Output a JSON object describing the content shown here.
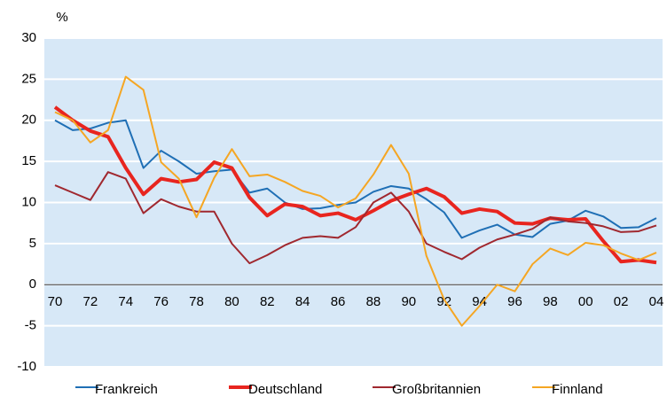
{
  "chart_data": {
    "type": "line",
    "y_label": "%",
    "categories": [
      "70",
      null,
      "72",
      null,
      "74",
      null,
      "76",
      null,
      "78",
      null,
      "80",
      null,
      "82",
      null,
      "84",
      null,
      "86",
      null,
      "88",
      null,
      "90",
      null,
      "92",
      null,
      "94",
      null,
      "96",
      null,
      "98",
      null,
      "00",
      null,
      "02",
      null,
      "04"
    ],
    "series": [
      {
        "name": "Frankreich",
        "color": "#1f6fb5",
        "values": [
          20,
          18.8,
          19,
          19.7,
          20,
          14.2,
          16.3,
          15,
          13.5,
          13.8,
          14,
          11.2,
          11.7,
          10,
          9.2,
          9.3,
          9.7,
          10,
          11.3,
          12,
          11.7,
          10.4,
          8.8,
          5.7,
          6.6,
          7.3,
          6.1,
          5.8,
          7.4,
          7.8,
          9,
          8.3,
          6.9,
          7,
          8.1
        ]
      },
      {
        "name": "Deutschland",
        "color": "#e8251f",
        "values": [
          21.6,
          20,
          18.7,
          18,
          14.2,
          11,
          12.9,
          12.5,
          12.8,
          14.9,
          14.2,
          10.6,
          8.4,
          9.8,
          9.5,
          8.4,
          8.7,
          7.9,
          9,
          10.2,
          11,
          11.7,
          10.7,
          8.7,
          9.2,
          8.9,
          7.5,
          7.4,
          8.1,
          7.9,
          8,
          5.3,
          2.8,
          3,
          2.7
        ]
      },
      {
        "name": "Großbritannien",
        "color": "#a0282f",
        "values": [
          12.1,
          11.2,
          10.3,
          13.7,
          12.9,
          8.7,
          10.4,
          9.5,
          8.9,
          8.9,
          5,
          2.6,
          3.6,
          4.8,
          5.7,
          5.9,
          5.7,
          7,
          10,
          11.2,
          8.9,
          5,
          4,
          3.1,
          4.5,
          5.5,
          6.1,
          6.8,
          8.2,
          7.7,
          7.5,
          7.1,
          6.4,
          6.5,
          7.2
        ]
      },
      {
        "name": "Finnland",
        "color": "#f5a623",
        "values": [
          21,
          20,
          17.3,
          18.8,
          25.3,
          23.7,
          14.9,
          12.9,
          8.2,
          13,
          16.5,
          13.2,
          13.4,
          12.5,
          11.4,
          10.8,
          9.4,
          10.5,
          13.4,
          17,
          13.5,
          3.5,
          -1.8,
          -5,
          -2.6,
          0,
          -0.8,
          2.5,
          4.4,
          3.6,
          5.1,
          4.8,
          3.8,
          3,
          3.9
        ]
      }
    ],
    "ylim": [
      -10,
      30
    ],
    "yticks": [
      -10,
      -5,
      0,
      5,
      10,
      15,
      20,
      25,
      30
    ],
    "grid": true
  }
}
